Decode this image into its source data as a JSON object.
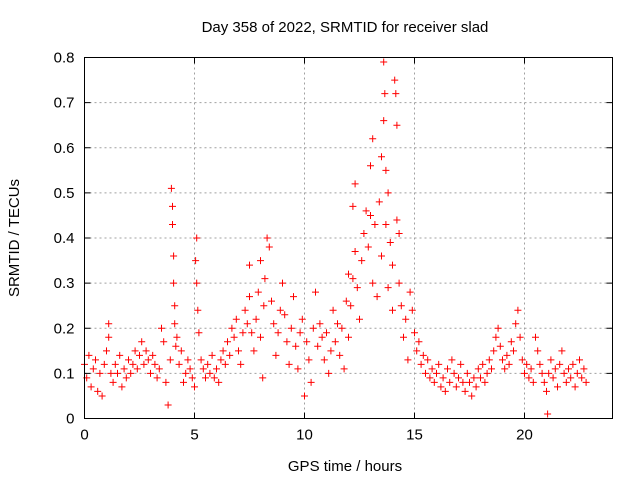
{
  "chart_data": {
    "type": "scatter",
    "title": "Day 358 of 2022, SRMTID for receiver slad",
    "xlabel": "GPS time / hours",
    "ylabel": "SRMTID / TECUs",
    "xlim": [
      0,
      24
    ],
    "ylim": [
      0,
      0.8
    ],
    "x_ticks": [
      0,
      5,
      10,
      15,
      20
    ],
    "x_tick_labels": [
      "0",
      "5",
      "10",
      "15",
      "20"
    ],
    "y_ticks": [
      0,
      0.1,
      0.2,
      0.3,
      0.4,
      0.5,
      0.6,
      0.7,
      0.8
    ],
    "y_tick_labels": [
      "0",
      "0.1",
      "0.2",
      "0.3",
      "0.4",
      "0.5",
      "0.6",
      "0.7",
      "0.8"
    ],
    "grid": true,
    "marker": "+",
    "series": [
      {
        "name": "SRMTID",
        "color": "#ff0000",
        "points": [
          [
            0.0,
            0.12
          ],
          [
            0.1,
            0.09
          ],
          [
            0.2,
            0.14
          ],
          [
            0.3,
            0.07
          ],
          [
            0.4,
            0.11
          ],
          [
            0.5,
            0.13
          ],
          [
            0.6,
            0.06
          ],
          [
            0.7,
            0.1
          ],
          [
            0.8,
            0.05
          ],
          [
            0.9,
            0.12
          ],
          [
            1.0,
            0.15
          ],
          [
            1.1,
            0.18
          ],
          [
            1.1,
            0.21
          ],
          [
            1.2,
            0.1
          ],
          [
            1.3,
            0.08
          ],
          [
            1.4,
            0.12
          ],
          [
            1.5,
            0.1
          ],
          [
            1.6,
            0.14
          ],
          [
            1.7,
            0.07
          ],
          [
            1.8,
            0.11
          ],
          [
            1.9,
            0.09
          ],
          [
            2.0,
            0.13
          ],
          [
            2.1,
            0.1
          ],
          [
            2.2,
            0.12
          ],
          [
            2.3,
            0.15
          ],
          [
            2.4,
            0.11
          ],
          [
            2.5,
            0.14
          ],
          [
            2.6,
            0.17
          ],
          [
            2.7,
            0.12
          ],
          [
            2.8,
            0.15
          ],
          [
            2.9,
            0.13
          ],
          [
            3.0,
            0.1
          ],
          [
            3.1,
            0.14
          ],
          [
            3.2,
            0.12
          ],
          [
            3.3,
            0.09
          ],
          [
            3.4,
            0.11
          ],
          [
            3.5,
            0.2
          ],
          [
            3.6,
            0.17
          ],
          [
            3.7,
            0.08
          ],
          [
            3.8,
            0.03
          ],
          [
            3.9,
            0.13
          ],
          [
            3.95,
            0.51
          ],
          [
            4.0,
            0.47
          ],
          [
            4.0,
            0.43
          ],
          [
            4.05,
            0.36
          ],
          [
            4.05,
            0.3
          ],
          [
            4.1,
            0.21
          ],
          [
            4.1,
            0.25
          ],
          [
            4.15,
            0.16
          ],
          [
            4.2,
            0.18
          ],
          [
            4.3,
            0.12
          ],
          [
            4.4,
            0.15
          ],
          [
            4.5,
            0.08
          ],
          [
            4.6,
            0.1
          ],
          [
            4.7,
            0.13
          ],
          [
            4.8,
            0.11
          ],
          [
            4.9,
            0.09
          ],
          [
            5.0,
            0.07
          ],
          [
            5.05,
            0.35
          ],
          [
            5.1,
            0.4
          ],
          [
            5.1,
            0.3
          ],
          [
            5.15,
            0.24
          ],
          [
            5.2,
            0.19
          ],
          [
            5.3,
            0.13
          ],
          [
            5.4,
            0.11
          ],
          [
            5.5,
            0.09
          ],
          [
            5.6,
            0.12
          ],
          [
            5.7,
            0.1
          ],
          [
            5.8,
            0.14
          ],
          [
            5.9,
            0.09
          ],
          [
            6.0,
            0.11
          ],
          [
            6.1,
            0.08
          ],
          [
            6.2,
            0.13
          ],
          [
            6.3,
            0.15
          ],
          [
            6.4,
            0.12
          ],
          [
            6.5,
            0.17
          ],
          [
            6.6,
            0.14
          ],
          [
            6.7,
            0.2
          ],
          [
            6.8,
            0.18
          ],
          [
            6.9,
            0.22
          ],
          [
            7.0,
            0.15
          ],
          [
            7.1,
            0.12
          ],
          [
            7.2,
            0.19
          ],
          [
            7.3,
            0.24
          ],
          [
            7.4,
            0.21
          ],
          [
            7.5,
            0.34
          ],
          [
            7.5,
            0.27
          ],
          [
            7.6,
            0.19
          ],
          [
            7.7,
            0.15
          ],
          [
            7.8,
            0.22
          ],
          [
            7.9,
            0.28
          ],
          [
            8.0,
            0.35
          ],
          [
            8.0,
            0.18
          ],
          [
            8.1,
            0.09
          ],
          [
            8.15,
            0.25
          ],
          [
            8.2,
            0.31
          ],
          [
            8.3,
            0.4
          ],
          [
            8.4,
            0.38
          ],
          [
            8.5,
            0.26
          ],
          [
            8.6,
            0.21
          ],
          [
            8.7,
            0.14
          ],
          [
            8.8,
            0.19
          ],
          [
            8.9,
            0.24
          ],
          [
            9.0,
            0.3
          ],
          [
            9.1,
            0.23
          ],
          [
            9.2,
            0.17
          ],
          [
            9.3,
            0.12
          ],
          [
            9.4,
            0.2
          ],
          [
            9.5,
            0.27
          ],
          [
            9.6,
            0.16
          ],
          [
            9.7,
            0.11
          ],
          [
            9.8,
            0.19
          ],
          [
            9.9,
            0.22
          ],
          [
            10.0,
            0.05
          ],
          [
            10.1,
            0.17
          ],
          [
            10.2,
            0.13
          ],
          [
            10.3,
            0.08
          ],
          [
            10.4,
            0.2
          ],
          [
            10.5,
            0.28
          ],
          [
            10.6,
            0.16
          ],
          [
            10.7,
            0.21
          ],
          [
            10.8,
            0.18
          ],
          [
            10.9,
            0.13
          ],
          [
            11.0,
            0.19
          ],
          [
            11.1,
            0.1
          ],
          [
            11.2,
            0.15
          ],
          [
            11.3,
            0.24
          ],
          [
            11.4,
            0.17
          ],
          [
            11.5,
            0.21
          ],
          [
            11.6,
            0.14
          ],
          [
            11.7,
            0.2
          ],
          [
            11.8,
            0.11
          ],
          [
            11.9,
            0.26
          ],
          [
            12.0,
            0.32
          ],
          [
            12.0,
            0.18
          ],
          [
            12.1,
            0.25
          ],
          [
            12.2,
            0.47
          ],
          [
            12.2,
            0.31
          ],
          [
            12.3,
            0.52
          ],
          [
            12.3,
            0.37
          ],
          [
            12.4,
            0.29
          ],
          [
            12.5,
            0.22
          ],
          [
            12.6,
            0.35
          ],
          [
            12.7,
            0.41
          ],
          [
            12.8,
            0.46
          ],
          [
            12.9,
            0.38
          ],
          [
            13.0,
            0.56
          ],
          [
            13.0,
            0.45
          ],
          [
            13.1,
            0.62
          ],
          [
            13.1,
            0.3
          ],
          [
            13.2,
            0.43
          ],
          [
            13.3,
            0.27
          ],
          [
            13.4,
            0.48
          ],
          [
            13.5,
            0.58
          ],
          [
            13.5,
            0.36
          ],
          [
            13.6,
            0.79
          ],
          [
            13.6,
            0.66
          ],
          [
            13.65,
            0.72
          ],
          [
            13.7,
            0.55
          ],
          [
            13.7,
            0.43
          ],
          [
            13.8,
            0.5
          ],
          [
            13.8,
            0.29
          ],
          [
            13.9,
            0.39
          ],
          [
            14.0,
            0.24
          ],
          [
            14.0,
            0.34
          ],
          [
            14.1,
            0.75
          ],
          [
            14.15,
            0.72
          ],
          [
            14.2,
            0.65
          ],
          [
            14.2,
            0.44
          ],
          [
            14.3,
            0.41
          ],
          [
            14.3,
            0.3
          ],
          [
            14.4,
            0.25
          ],
          [
            14.5,
            0.18
          ],
          [
            14.6,
            0.22
          ],
          [
            14.7,
            0.13
          ],
          [
            14.8,
            0.28
          ],
          [
            14.9,
            0.24
          ],
          [
            15.0,
            0.19
          ],
          [
            15.1,
            0.15
          ],
          [
            15.2,
            0.17
          ],
          [
            15.3,
            0.12
          ],
          [
            15.4,
            0.14
          ],
          [
            15.5,
            0.1
          ],
          [
            15.6,
            0.13
          ],
          [
            15.7,
            0.09
          ],
          [
            15.8,
            0.11
          ],
          [
            15.9,
            0.08
          ],
          [
            16.0,
            0.1
          ],
          [
            16.1,
            0.12
          ],
          [
            16.2,
            0.07
          ],
          [
            16.3,
            0.09
          ],
          [
            16.4,
            0.06
          ],
          [
            16.5,
            0.11
          ],
          [
            16.6,
            0.08
          ],
          [
            16.7,
            0.13
          ],
          [
            16.8,
            0.1
          ],
          [
            16.9,
            0.07
          ],
          [
            17.0,
            0.09
          ],
          [
            17.1,
            0.12
          ],
          [
            17.2,
            0.08
          ],
          [
            17.3,
            0.06
          ],
          [
            17.4,
            0.1
          ],
          [
            17.5,
            0.08
          ],
          [
            17.6,
            0.05
          ],
          [
            17.7,
            0.09
          ],
          [
            17.8,
            0.07
          ],
          [
            17.9,
            0.11
          ],
          [
            18.0,
            0.09
          ],
          [
            18.1,
            0.12
          ],
          [
            18.2,
            0.08
          ],
          [
            18.3,
            0.1
          ],
          [
            18.4,
            0.13
          ],
          [
            18.5,
            0.11
          ],
          [
            18.6,
            0.15
          ],
          [
            18.7,
            0.18
          ],
          [
            18.8,
            0.2
          ],
          [
            18.9,
            0.16
          ],
          [
            19.0,
            0.13
          ],
          [
            19.1,
            0.11
          ],
          [
            19.2,
            0.14
          ],
          [
            19.3,
            0.12
          ],
          [
            19.4,
            0.17
          ],
          [
            19.5,
            0.15
          ],
          [
            19.6,
            0.21
          ],
          [
            19.7,
            0.24
          ],
          [
            19.8,
            0.18
          ],
          [
            19.9,
            0.13
          ],
          [
            20.0,
            0.1
          ],
          [
            20.1,
            0.12
          ],
          [
            20.2,
            0.09
          ],
          [
            20.3,
            0.11
          ],
          [
            20.4,
            0.08
          ],
          [
            20.5,
            0.18
          ],
          [
            20.6,
            0.15
          ],
          [
            20.7,
            0.12
          ],
          [
            20.8,
            0.1
          ],
          [
            20.9,
            0.08
          ],
          [
            21.0,
            0.06
          ],
          [
            21.05,
            0.01
          ],
          [
            21.1,
            0.1
          ],
          [
            21.2,
            0.13
          ],
          [
            21.3,
            0.09
          ],
          [
            21.4,
            0.11
          ],
          [
            21.5,
            0.07
          ],
          [
            21.6,
            0.12
          ],
          [
            21.7,
            0.15
          ],
          [
            21.8,
            0.1
          ],
          [
            21.9,
            0.08
          ],
          [
            22.0,
            0.11
          ],
          [
            22.1,
            0.09
          ],
          [
            22.2,
            0.12
          ],
          [
            22.3,
            0.07
          ],
          [
            22.4,
            0.1
          ],
          [
            22.5,
            0.13
          ],
          [
            22.6,
            0.09
          ],
          [
            22.7,
            0.11
          ],
          [
            22.8,
            0.08
          ]
        ]
      }
    ]
  }
}
